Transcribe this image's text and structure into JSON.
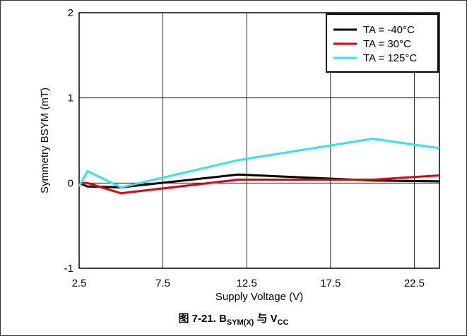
{
  "chart_data": {
    "type": "line",
    "xlabel": "Supply Voltage (V)",
    "ylabel": "Symmetry BSYM (mT)",
    "xlim": [
      2.5,
      24
    ],
    "ylim": [
      -1,
      2
    ],
    "xticks": [
      2.5,
      7.5,
      12.5,
      17.5,
      22.5
    ],
    "xtick_labels": [
      "2.5",
      "7.5",
      "12.5",
      "17.5",
      "22.5"
    ],
    "yticks": [
      -1,
      0,
      1,
      2
    ],
    "ytick_labels": [
      "-1",
      "0",
      "1",
      "2"
    ],
    "grid": true,
    "legend_position": "top-right",
    "series": [
      {
        "name": "TA = -40°C",
        "color": "#000000",
        "x": [
          2.5,
          3,
          5,
          12,
          20,
          24
        ],
        "y": [
          0,
          -0.04,
          -0.05,
          0.1,
          0.03,
          0.02
        ]
      },
      {
        "name": "TA = 30°C",
        "color": "#e8000b",
        "x": [
          2.5,
          3,
          5,
          12,
          20,
          24
        ],
        "y": [
          0,
          0,
          -0.12,
          0.04,
          0.04,
          0.09
        ]
      },
      {
        "name": "TA = 125°C",
        "color": "#2ee6f2",
        "x": [
          2.5,
          3,
          5,
          12,
          20,
          24
        ],
        "y": [
          -0.04,
          0.14,
          -0.05,
          0.27,
          0.52,
          0.41
        ]
      }
    ]
  },
  "caption": {
    "prefix": "图 7-21. B",
    "sub1": "SYM(X)",
    "middle": " 与 V",
    "sub2": "CC"
  }
}
